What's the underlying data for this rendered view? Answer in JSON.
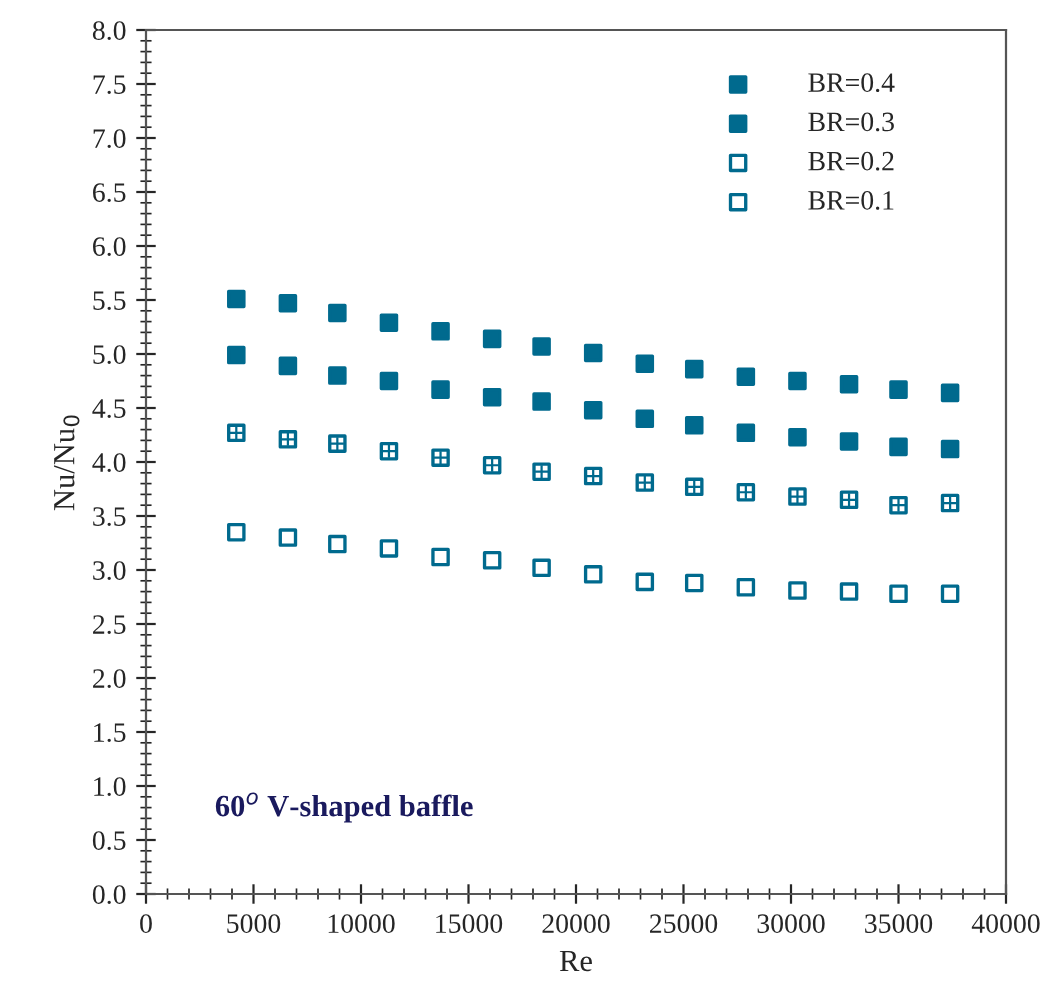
{
  "chart_data": {
    "type": "scatter",
    "xlabel": "Re",
    "ylabel": "Nu/Nu$_{0}$",
    "annotations": [
      "60$^{o}$ V-shaped baffle"
    ],
    "x": [
      4200,
      6600,
      8900,
      11300,
      13700,
      16100,
      18400,
      20800,
      23200,
      25500,
      27900,
      30300,
      32700,
      35000,
      37400
    ],
    "series": [
      {
        "name": "BR=0.4",
        "color": "#006a8e",
        "values": [
          5.51,
          5.47,
          5.38,
          5.29,
          5.21,
          5.14,
          5.07,
          5.01,
          4.91,
          4.86,
          4.79,
          4.75,
          4.72,
          4.67,
          4.64
        ]
      },
      {
        "name": "BR=0.3",
        "color": "#006a8e",
        "values": [
          4.99,
          4.89,
          4.8,
          4.75,
          4.67,
          4.6,
          4.56,
          4.48,
          4.4,
          4.34,
          4.27,
          4.23,
          4.19,
          4.14,
          4.12
        ]
      },
      {
        "name": "BR=0.2",
        "color": "#006a8e",
        "values": [
          4.27,
          4.21,
          4.17,
          4.1,
          4.04,
          3.97,
          3.91,
          3.87,
          3.81,
          3.77,
          3.72,
          3.68,
          3.65,
          3.6,
          3.62
        ]
      },
      {
        "name": "BR=0.1",
        "color": "#006a8e",
        "values": [
          3.35,
          3.3,
          3.24,
          3.2,
          3.12,
          3.09,
          3.02,
          2.96,
          2.89,
          2.88,
          2.84,
          2.81,
          2.8,
          2.78,
          2.78
        ]
      }
    ],
    "xlim": [
      0,
      40000
    ],
    "xticks": [
      0,
      5000,
      10000,
      15000,
      20000,
      25000,
      30000,
      35000,
      40000
    ],
    "ylim": [
      0,
      8
    ],
    "yticks": [
      {
        "value": 0,
        "label": "0.0"
      },
      {
        "value": 0.5,
        "label": "0.5"
      },
      {
        "value": 1,
        "label": "1.0"
      },
      {
        "value": 1.5,
        "label": "1.5"
      },
      {
        "value": 2,
        "label": "2.0"
      },
      {
        "value": 2.5,
        "label": "2.5"
      },
      {
        "value": 3,
        "label": "3.0"
      },
      {
        "value": 3.5,
        "label": "3.5"
      },
      {
        "value": 4,
        "label": "4.0"
      },
      {
        "value": 4.5,
        "label": "4.5"
      },
      {
        "value": 5,
        "label": "5.0"
      },
      {
        "value": 5.5,
        "label": "5.5"
      },
      {
        "value": 6,
        "label": "6.0"
      },
      {
        "value": 6.5,
        "label": "6.5"
      },
      {
        "value": 7,
        "label": "7.0"
      },
      {
        "value": 7.5,
        "label": "7.5"
      },
      {
        "value": 8,
        "label": "8.0"
      }
    ],
    "marker": "square",
    "legend": "top right",
    "grid": false
  }
}
